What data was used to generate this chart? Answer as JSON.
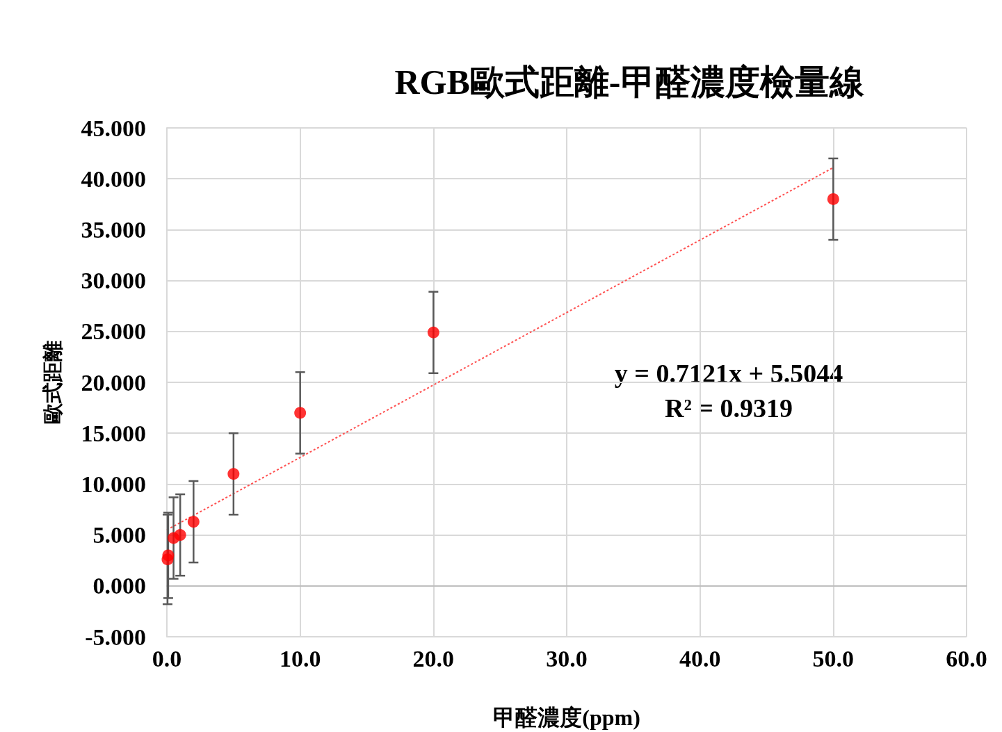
{
  "chart_data": {
    "type": "scatter",
    "title": "RGB歐式距離-甲醛濃度檢量線",
    "xlabel": "甲醛濃度(ppm)",
    "ylabel": "歐式距離",
    "annotations": [
      "y = 0.7121x + 5.5044",
      "R² = 0.9319"
    ],
    "xlim": [
      0,
      60
    ],
    "xticks": [
      {
        "value": 0,
        "label": "0.0"
      },
      {
        "value": 10,
        "label": "10.0"
      },
      {
        "value": 20,
        "label": "20.0"
      },
      {
        "value": 30,
        "label": "30.0"
      },
      {
        "value": 40,
        "label": "40.0"
      },
      {
        "value": 50,
        "label": "50.0"
      },
      {
        "value": 60,
        "label": "60.0"
      }
    ],
    "ylim": [
      -5,
      45
    ],
    "yticks": [
      {
        "value": -5,
        "label": "-5.000"
      },
      {
        "value": 0,
        "label": "0.000"
      },
      {
        "value": 5,
        "label": "5.000"
      },
      {
        "value": 10,
        "label": "10.000"
      },
      {
        "value": 15,
        "label": "15.000"
      },
      {
        "value": 20,
        "label": "20.000"
      },
      {
        "value": 25,
        "label": "25.000"
      },
      {
        "value": 30,
        "label": "30.000"
      },
      {
        "value": 35,
        "label": "35.000"
      },
      {
        "value": 40,
        "label": "40.000"
      },
      {
        "value": 45,
        "label": "45.000"
      }
    ],
    "grid": true,
    "series": [
      {
        "color": "#ff0000",
        "marker": "circle",
        "x": [
          0.05,
          0.1,
          0.5,
          1,
          2,
          5,
          10,
          20,
          50
        ],
        "values": [
          2.6,
          3.0,
          4.7,
          5.0,
          6.3,
          11.0,
          17.0,
          24.9,
          38.0
        ],
        "errors": [
          4.4,
          4.2,
          4.0,
          4.0,
          4.0,
          4.0,
          4.0,
          4.0,
          4.0
        ]
      },
      {
        "type": "line",
        "color": "#ff5050",
        "line_style": "dotted",
        "marker": "none",
        "x": [
          0,
          50
        ],
        "values": [
          5.5,
          41.1
        ]
      }
    ]
  }
}
